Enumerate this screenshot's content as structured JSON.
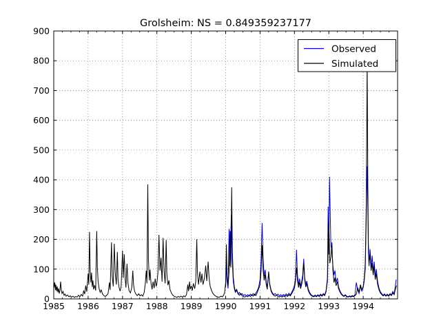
{
  "figure": {
    "background": "#ffffff",
    "spine_color": "#000000"
  },
  "chart_data": {
    "type": "line",
    "title": "Grolsheim: NS = 0.849359237177",
    "xlabel": "",
    "ylabel": "",
    "xlim": [
      1985,
      1995
    ],
    "ylim": [
      0,
      900
    ],
    "x_ticks": {
      "values": [
        1985,
        1986,
        1987,
        1988,
        1989,
        1990,
        1991,
        1992,
        1993,
        1994
      ],
      "labels": [
        "1985",
        "1986",
        "1987",
        "1988",
        "1989",
        "1990",
        "1991",
        "1992",
        "1993",
        "1994"
      ]
    },
    "x_minor_tick_interval": 0.25,
    "y_ticks": {
      "values": [
        0,
        100,
        200,
        300,
        400,
        500,
        600,
        700,
        800,
        900
      ],
      "labels": [
        "0",
        "100",
        "200",
        "300",
        "400",
        "500",
        "600",
        "700",
        "800",
        "900"
      ]
    },
    "grid": {
      "visible": true,
      "style": "dotted",
      "color": "#777777"
    },
    "legend": {
      "position": "upper-right",
      "background": "#ffffff",
      "border_color": "#000000",
      "entries": [
        "Observed",
        "Simulated"
      ]
    },
    "series": [
      {
        "name": "Observed",
        "color": "#0000dd",
        "line_width": 1,
        "points": [
          1990.0,
          40,
          1990.02,
          120,
          1990.04,
          60,
          1990.07,
          35,
          1990.1,
          235,
          1990.12,
          110,
          1990.14,
          180,
          1990.165,
          282,
          1990.19,
          130,
          1990.22,
          60,
          1990.25,
          35,
          1990.28,
          22,
          1990.32,
          28,
          1990.36,
          16,
          1990.4,
          22,
          1990.44,
          14,
          1990.48,
          18,
          1990.52,
          11,
          1990.56,
          15,
          1990.6,
          10,
          1990.64,
          14,
          1990.68,
          10,
          1990.72,
          16,
          1990.76,
          11,
          1990.8,
          18,
          1990.84,
          12,
          1990.88,
          20,
          1990.92,
          28,
          1990.96,
          40,
          1991.0,
          65,
          1991.03,
          130,
          1991.06,
          255,
          1991.09,
          130,
          1991.12,
          75,
          1991.15,
          98,
          1991.18,
          58,
          1991.21,
          38,
          1991.25,
          88,
          1991.28,
          52,
          1991.32,
          30,
          1991.36,
          20,
          1991.4,
          14,
          1991.44,
          18,
          1991.48,
          12,
          1991.52,
          16,
          1991.56,
          10,
          1991.6,
          14,
          1991.64,
          10,
          1991.68,
          15,
          1991.72,
          11,
          1991.76,
          17,
          1991.8,
          12,
          1991.84,
          19,
          1991.88,
          13,
          1991.92,
          22,
          1991.96,
          32,
          1992.0,
          45,
          1992.03,
          70,
          1992.06,
          165,
          1992.09,
          78,
          1992.12,
          48,
          1992.15,
          68,
          1992.18,
          42,
          1992.21,
          58,
          1992.24,
          80,
          1992.27,
          135,
          1992.3,
          70,
          1992.33,
          48,
          1992.36,
          60,
          1992.4,
          34,
          1992.44,
          22,
          1992.48,
          15,
          1992.52,
          11,
          1992.56,
          9,
          1992.6,
          13,
          1992.64,
          9,
          1992.68,
          14,
          1992.72,
          10,
          1992.76,
          16,
          1992.8,
          11,
          1992.84,
          18,
          1992.88,
          13,
          1992.92,
          28,
          1992.96,
          70,
          1992.98,
          310,
          1993.0,
          150,
          1993.02,
          410,
          1993.06,
          180,
          1993.09,
          160,
          1993.12,
          110,
          1993.15,
          80,
          1993.18,
          95,
          1993.21,
          55,
          1993.25,
          70,
          1993.28,
          42,
          1993.32,
          28,
          1993.36,
          19,
          1993.4,
          13,
          1993.44,
          10,
          1993.48,
          14,
          1993.52,
          9,
          1993.56,
          7,
          1993.6,
          10,
          1993.64,
          8,
          1993.68,
          11,
          1993.72,
          9,
          1993.76,
          14,
          1993.8,
          55,
          1993.84,
          30,
          1993.88,
          18,
          1993.92,
          42,
          1993.96,
          26,
          1994.0,
          38,
          1994.03,
          60,
          1994.06,
          100,
          1994.09,
          280,
          1994.115,
          445,
          1994.135,
          300,
          1994.15,
          160,
          1994.17,
          110,
          1994.2,
          167,
          1994.23,
          105,
          1994.26,
          145,
          1994.29,
          90,
          1994.32,
          125,
          1994.35,
          75,
          1994.38,
          100,
          1994.42,
          58,
          1994.46,
          36,
          1994.5,
          24,
          1994.54,
          17,
          1994.58,
          12,
          1994.62,
          17,
          1994.66,
          11,
          1994.7,
          16,
          1994.74,
          11,
          1994.78,
          18,
          1994.82,
          13,
          1994.86,
          25,
          1994.9,
          17,
          1994.93,
          40,
          1994.96,
          65
        ]
      },
      {
        "name": "Simulated",
        "color": "#000000",
        "line_width": 1,
        "points": [
          1985.0,
          62,
          1985.01,
          38,
          1985.03,
          55,
          1985.05,
          30,
          1985.06,
          48,
          1985.08,
          26,
          1985.1,
          42,
          1985.12,
          22,
          1985.14,
          35,
          1985.16,
          18,
          1985.18,
          28,
          1985.2,
          58,
          1985.22,
          30,
          1985.24,
          18,
          1985.27,
          25,
          1985.3,
          12,
          1985.33,
          16,
          1985.36,
          9,
          1985.4,
          13,
          1985.44,
          7,
          1985.48,
          10,
          1985.52,
          6,
          1985.56,
          9,
          1985.6,
          5,
          1985.64,
          8,
          1985.68,
          6,
          1985.72,
          12,
          1985.76,
          7,
          1985.8,
          15,
          1985.84,
          9,
          1985.87,
          28,
          1985.9,
          16,
          1985.93,
          45,
          1985.96,
          24,
          1986.0,
          85,
          1986.02,
          48,
          1986.04,
          225,
          1986.06,
          95,
          1986.08,
          55,
          1986.1,
          88,
          1986.12,
          40,
          1986.14,
          62,
          1986.16,
          32,
          1986.19,
          46,
          1986.22,
          28,
          1986.25,
          228,
          1986.27,
          105,
          1986.29,
          58,
          1986.32,
          34,
          1986.35,
          22,
          1986.38,
          30,
          1986.42,
          16,
          1986.46,
          11,
          1986.5,
          8,
          1986.54,
          12,
          1986.58,
          18,
          1986.62,
          55,
          1986.64,
          30,
          1986.68,
          190,
          1986.7,
          75,
          1986.73,
          42,
          1986.76,
          185,
          1986.79,
          85,
          1986.82,
          48,
          1986.85,
          158,
          1986.87,
          65,
          1986.9,
          38,
          1986.93,
          26,
          1986.96,
          42,
          1987.0,
          162,
          1987.02,
          70,
          1987.05,
          150,
          1987.08,
          64,
          1987.1,
          38,
          1987.13,
          118,
          1987.16,
          52,
          1987.19,
          28,
          1987.23,
          20,
          1987.27,
          38,
          1987.3,
          95,
          1987.32,
          48,
          1987.35,
          26,
          1987.39,
          16,
          1987.43,
          11,
          1987.47,
          17,
          1987.51,
          10,
          1987.55,
          14,
          1987.59,
          9,
          1987.63,
          22,
          1987.66,
          48,
          1987.69,
          95,
          1987.71,
          52,
          1987.735,
          385,
          1987.755,
          130,
          1987.78,
          62,
          1987.8,
          98,
          1987.83,
          52,
          1987.86,
          32,
          1987.89,
          58,
          1987.92,
          36,
          1987.95,
          68,
          1987.98,
          42,
          1988.0,
          52,
          1988.03,
          88,
          1988.06,
          215,
          1988.09,
          95,
          1988.12,
          138,
          1988.15,
          58,
          1988.18,
          205,
          1988.21,
          92,
          1988.24,
          52,
          1988.27,
          198,
          1988.29,
          85,
          1988.32,
          46,
          1988.35,
          62,
          1988.38,
          32,
          1988.42,
          20,
          1988.46,
          13,
          1988.5,
          9,
          1988.54,
          7,
          1988.58,
          5,
          1988.62,
          8,
          1988.66,
          6,
          1988.7,
          9,
          1988.74,
          6,
          1988.78,
          10,
          1988.82,
          7,
          1988.86,
          14,
          1988.9,
          48,
          1988.92,
          26,
          1988.95,
          58,
          1988.97,
          32,
          1989.0,
          44,
          1989.03,
          28,
          1989.06,
          52,
          1989.1,
          34,
          1989.13,
          58,
          1989.16,
          200,
          1989.18,
          88,
          1989.21,
          48,
          1989.25,
          92,
          1989.28,
          55,
          1989.31,
          85,
          1989.34,
          48,
          1989.38,
          68,
          1989.42,
          112,
          1989.45,
          60,
          1989.49,
          125,
          1989.52,
          68,
          1989.55,
          42,
          1989.59,
          28,
          1989.63,
          18,
          1989.67,
          13,
          1989.71,
          9,
          1989.76,
          7,
          1989.81,
          5,
          1989.86,
          9,
          1989.9,
          7,
          1989.94,
          12,
          1989.97,
          22,
          1990.0,
          55,
          1990.02,
          183,
          1990.04,
          78,
          1990.07,
          42,
          1990.1,
          92,
          1990.13,
          228,
          1990.15,
          105,
          1990.175,
          375,
          1990.195,
          160,
          1990.22,
          75,
          1990.25,
          42,
          1990.28,
          26,
          1990.32,
          32,
          1990.36,
          18,
          1990.4,
          12,
          1990.44,
          18,
          1990.48,
          10,
          1990.52,
          8,
          1990.56,
          6,
          1990.6,
          10,
          1990.64,
          7,
          1990.68,
          12,
          1990.72,
          8,
          1990.76,
          14,
          1990.8,
          9,
          1990.84,
          16,
          1990.88,
          11,
          1990.92,
          22,
          1990.96,
          34,
          1991.0,
          48,
          1991.03,
          95,
          1991.06,
          180,
          1991.09,
          95,
          1991.12,
          62,
          1991.15,
          82,
          1991.18,
          48,
          1991.21,
          32,
          1991.25,
          92,
          1991.28,
          48,
          1991.32,
          26,
          1991.36,
          17,
          1991.4,
          12,
          1991.44,
          9,
          1991.48,
          13,
          1991.52,
          8,
          1991.56,
          6,
          1991.6,
          9,
          1991.64,
          6,
          1991.68,
          10,
          1991.72,
          7,
          1991.76,
          12,
          1991.8,
          8,
          1991.84,
          14,
          1991.88,
          10,
          1991.92,
          18,
          1991.96,
          26,
          1992.0,
          36,
          1992.03,
          58,
          1992.06,
          105,
          1992.09,
          60,
          1992.12,
          38,
          1992.15,
          55,
          1992.18,
          34,
          1992.21,
          48,
          1992.24,
          68,
          1992.27,
          120,
          1992.3,
          62,
          1992.33,
          40,
          1992.36,
          52,
          1992.4,
          28,
          1992.44,
          18,
          1992.48,
          12,
          1992.52,
          9,
          1992.56,
          7,
          1992.6,
          10,
          1992.64,
          7,
          1992.68,
          12,
          1992.72,
          8,
          1992.76,
          13,
          1992.8,
          9,
          1992.84,
          15,
          1992.88,
          11,
          1992.92,
          24,
          1992.96,
          60,
          1993.0,
          255,
          1993.03,
          120,
          1993.06,
          140,
          1993.09,
          190,
          1993.12,
          95,
          1993.15,
          55,
          1993.18,
          72,
          1993.21,
          44,
          1993.25,
          58,
          1993.28,
          35,
          1993.32,
          24,
          1993.36,
          16,
          1993.4,
          11,
          1993.44,
          8,
          1993.48,
          12,
          1993.52,
          7,
          1993.56,
          6,
          1993.6,
          8,
          1993.64,
          6,
          1993.68,
          9,
          1993.72,
          7,
          1993.76,
          11,
          1993.8,
          16,
          1993.84,
          38,
          1993.88,
          22,
          1993.92,
          48,
          1993.96,
          30,
          1994.0,
          42,
          1994.03,
          68,
          1994.06,
          120,
          1994.09,
          320,
          1994.115,
          800,
          1994.135,
          380,
          1994.15,
          190,
          1994.17,
          120,
          1994.2,
          150,
          1994.23,
          95,
          1994.26,
          120,
          1994.29,
          80,
          1994.32,
          110,
          1994.35,
          65,
          1994.38,
          85,
          1994.42,
          48,
          1994.46,
          30,
          1994.5,
          20,
          1994.54,
          14,
          1994.58,
          10,
          1994.62,
          14,
          1994.66,
          9,
          1994.7,
          13,
          1994.74,
          9,
          1994.78,
          15,
          1994.82,
          11,
          1994.86,
          20,
          1994.9,
          14,
          1994.93,
          30,
          1994.97,
          45
        ]
      }
    ]
  }
}
